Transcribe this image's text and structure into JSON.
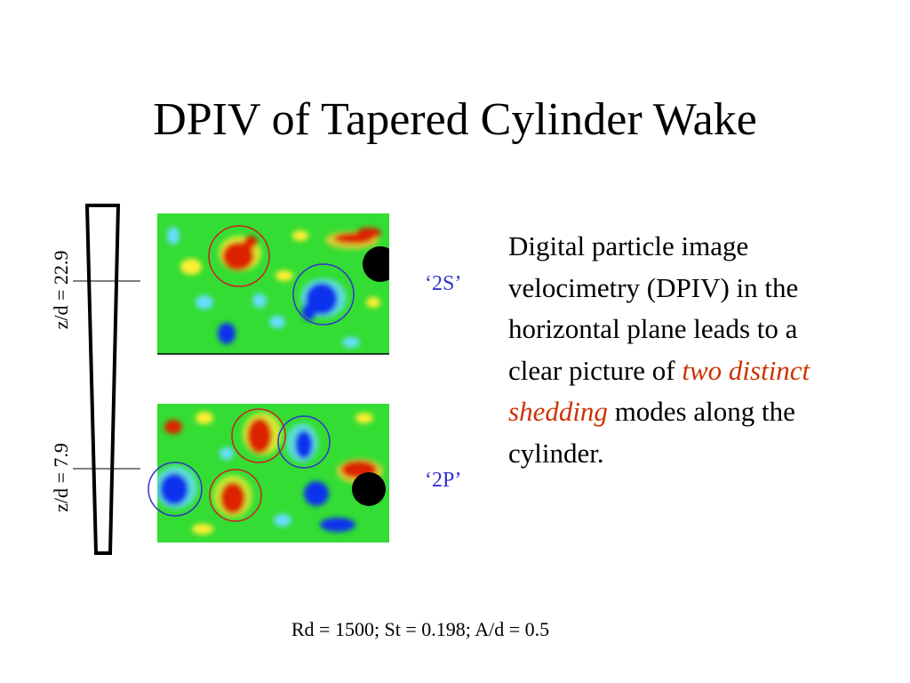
{
  "slide": {
    "title": "DPIV of Tapered Cylinder Wake"
  },
  "cylinder": {
    "upper_section_label": "z/d = 22.9",
    "lower_section_label": "z/d = 7.9"
  },
  "modes": {
    "upper_mode": "‘2S’",
    "lower_mode": "‘2P’"
  },
  "description": {
    "part1": "Digital particle image velocimetry (DPIV) in the horizontal plane leads to a clear picture of ",
    "highlight": "two distinct shedding",
    "part2": " modes along the cylinder."
  },
  "parameters": "Rd = 1500; St = 0.198; A/d = 0.5",
  "colors": {
    "field_background": "#33dd33",
    "positive_vorticity": "#dd2200",
    "negative_vorticity": "#1133ee",
    "red_circle": "#cc2222",
    "blue_circle": "#3333cc",
    "emphasis_text": "#cc3300"
  }
}
